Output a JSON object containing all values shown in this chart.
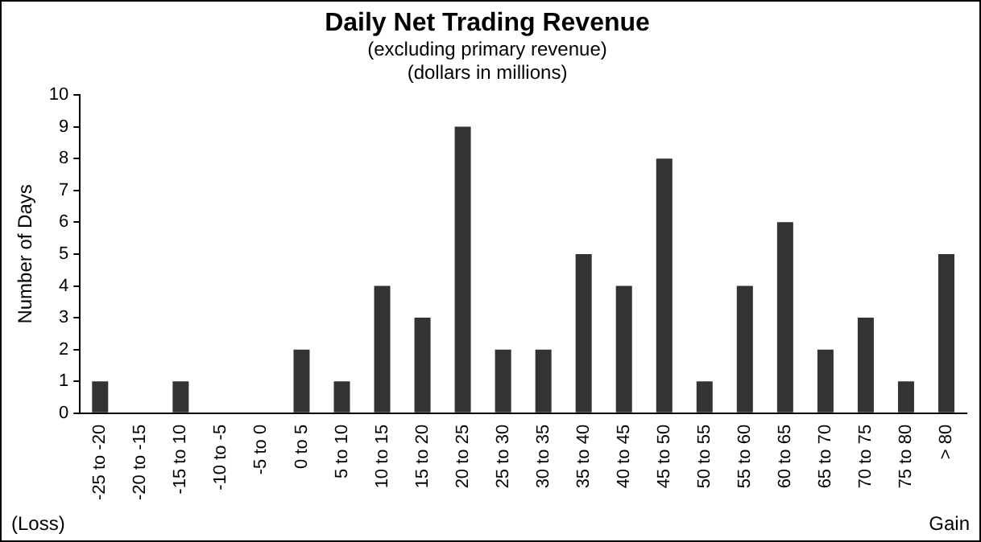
{
  "chart_data": {
    "type": "bar",
    "title": "Daily Net Trading Revenue",
    "subtitle": "(excluding primary revenue)\n(dollars in millions)",
    "ylabel": "Number of Days",
    "categories": [
      "-25 to -20",
      "-20 to -15",
      "-15 to 10",
      "-10 to -5",
      "-5 to 0",
      "0 to 5",
      "5 to 10",
      "10 to 15",
      "15 to 20",
      "20 to 25",
      "25 to 30",
      "30 to 35",
      "35 to 40",
      "40 to 45",
      "45 to 50",
      "50 to 55",
      "55 to 60",
      "60 to 65",
      "65 to 70",
      "70 to 75",
      "75 to 80",
      "> 80"
    ],
    "values": [
      1,
      0,
      1,
      0,
      0,
      2,
      1,
      4,
      3,
      9,
      2,
      2,
      5,
      4,
      8,
      1,
      4,
      6,
      2,
      3,
      1,
      5
    ],
    "color": "#333333",
    "ylim": [
      0,
      10
    ],
    "yticks": [
      0,
      1,
      2,
      3,
      4,
      5,
      6,
      7,
      8,
      9,
      10
    ],
    "grid": false,
    "legend": false,
    "annotations": [
      "(Loss)",
      "Gain"
    ]
  }
}
